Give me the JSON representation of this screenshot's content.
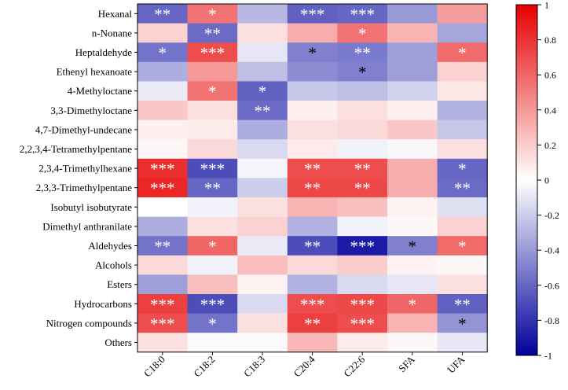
{
  "chart_data": {
    "type": "heatmap",
    "title": "",
    "xlabel": "",
    "ylabel": "",
    "rows": [
      "Hexanal",
      "n-Nonane",
      "Heptaldehyde",
      "Ethenyl hexanoate",
      "4-Methyloctane",
      "3,3-Dimethyloctane",
      "4,7-Dimethyl-undecane",
      "2,2,3,4-Tetramethylpentane",
      "2,3,4-Trimethylhexane",
      "2,3,3-Trimethylpentane",
      "Isobutyl isobutyrate",
      "Dimethyl anthranilate",
      "Aldehydes",
      "Alcohols",
      "Esters",
      "Hydrocarbons",
      "Nitrogen compounds",
      "Others"
    ],
    "columns": [
      "C18:0",
      "C18:2",
      "C18:3",
      "C20:4",
      "C22:6",
      "SFA",
      "UFA"
    ],
    "values": [
      [
        -0.6,
        0.55,
        -0.28,
        -0.62,
        -0.6,
        -0.4,
        0.38
      ],
      [
        0.18,
        -0.58,
        0.12,
        0.32,
        0.55,
        0.3,
        -0.35
      ],
      [
        -0.55,
        0.7,
        -0.1,
        -0.5,
        -0.52,
        -0.38,
        0.58
      ],
      [
        -0.32,
        0.4,
        -0.25,
        -0.45,
        -0.5,
        -0.38,
        0.18
      ],
      [
        -0.08,
        0.55,
        -0.62,
        -0.22,
        -0.25,
        -0.18,
        0.1
      ],
      [
        0.22,
        0.12,
        -0.58,
        0.06,
        0.12,
        0.06,
        -0.3
      ],
      [
        0.06,
        0.08,
        -0.32,
        0.12,
        0.15,
        0.22,
        -0.22
      ],
      [
        0.03,
        0.15,
        -0.15,
        0.08,
        -0.05,
        -0.03,
        0.12
      ],
      [
        0.82,
        -0.7,
        -0.04,
        0.7,
        0.7,
        0.32,
        -0.6
      ],
      [
        0.85,
        -0.6,
        -0.2,
        0.72,
        0.72,
        0.32,
        -0.58
      ],
      [
        0.0,
        -0.05,
        0.12,
        0.3,
        0.25,
        0.05,
        -0.12
      ],
      [
        -0.32,
        0.12,
        0.18,
        -0.3,
        -0.05,
        0.03,
        0.18
      ],
      [
        -0.55,
        0.6,
        -0.08,
        -0.7,
        -0.9,
        -0.5,
        0.58
      ],
      [
        0.15,
        -0.05,
        0.25,
        0.15,
        0.2,
        0.05,
        0.03
      ],
      [
        -0.38,
        0.25,
        0.05,
        -0.3,
        -0.15,
        -0.1,
        0.12
      ],
      [
        0.75,
        -0.7,
        -0.15,
        0.7,
        0.72,
        0.6,
        -0.62
      ],
      [
        0.7,
        -0.55,
        0.12,
        0.75,
        0.7,
        0.3,
        -0.42
      ],
      [
        0.12,
        -0.02,
        -0.02,
        0.28,
        0.08,
        0.03,
        -0.1
      ]
    ],
    "significance": [
      [
        "**",
        "*",
        "",
        "***",
        "***",
        "",
        ""
      ],
      [
        "",
        "**",
        "",
        "",
        "*",
        "",
        ""
      ],
      [
        "*",
        "***",
        "",
        "*",
        "**",
        "",
        "*"
      ],
      [
        "",
        "",
        "",
        "",
        "*",
        "",
        ""
      ],
      [
        "",
        "*",
        "*",
        "",
        "",
        "",
        ""
      ],
      [
        "",
        "",
        "**",
        "",
        "",
        "",
        ""
      ],
      [
        "",
        "",
        "",
        "",
        "",
        "",
        ""
      ],
      [
        "",
        "",
        "",
        "",
        "",
        "",
        ""
      ],
      [
        "***",
        "***",
        "",
        "**",
        "**",
        "",
        "*"
      ],
      [
        "***",
        "**",
        "",
        "**",
        "**",
        "",
        "**"
      ],
      [
        "",
        "",
        "",
        "",
        "",
        "",
        ""
      ],
      [
        "",
        "",
        "",
        "",
        "",
        "",
        ""
      ],
      [
        "**",
        "*",
        "",
        "**",
        "***",
        "*",
        "*"
      ],
      [
        "",
        "",
        "",
        "",
        "",
        "",
        ""
      ],
      [
        "",
        "",
        "",
        "",
        "",
        "",
        ""
      ],
      [
        "***",
        "***",
        "",
        "***",
        "***",
        "*",
        "**"
      ],
      [
        "***",
        "*",
        "",
        "**",
        "***",
        "",
        "*"
      ],
      [
        "",
        "",
        "",
        "",
        "",
        "",
        ""
      ]
    ],
    "colorbar": {
      "min": -1,
      "max": 1,
      "ticks": [
        -1,
        -0.8,
        -0.6,
        -0.4,
        -0.2,
        0,
        0.2,
        0.4,
        0.6,
        0.8,
        1
      ],
      "low_color": "#00009c",
      "mid_color": "#ffffff",
      "high_color": "#e60000"
    }
  }
}
